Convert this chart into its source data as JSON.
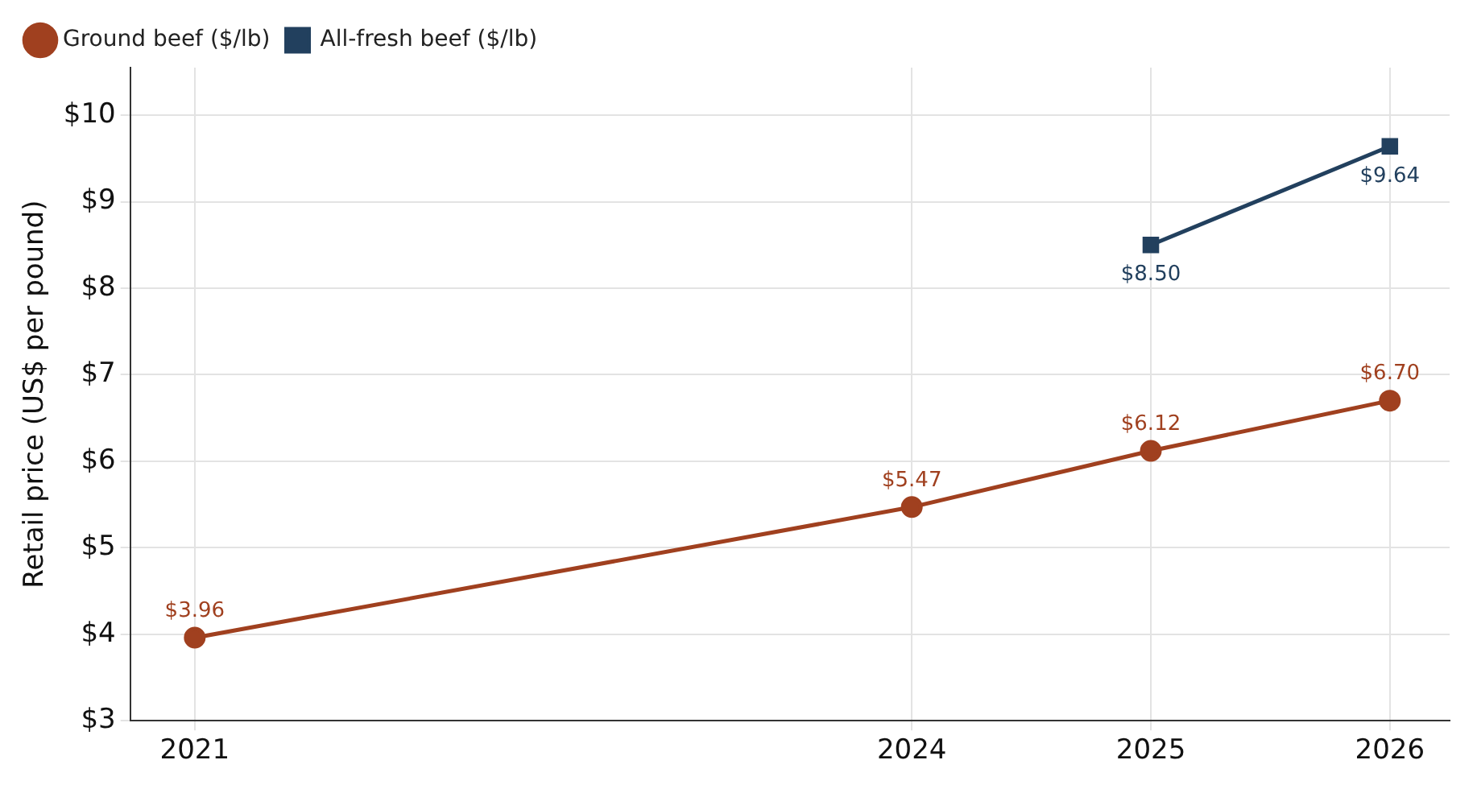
{
  "chart_data": {
    "type": "line",
    "ylabel": "Retail price (US$ per pound)",
    "x": [
      2021,
      2024,
      2025,
      2026
    ],
    "series": [
      {
        "name": "Ground beef ($/lb)",
        "color": "#a0401f",
        "marker": "circle",
        "values": [
          3.96,
          5.47,
          6.12,
          6.7
        ],
        "value_labels": [
          "$3.96",
          "$5.47",
          "$6.12",
          "$6.70"
        ]
      },
      {
        "name": "All-fresh beef ($/lb)",
        "color": "#22405e",
        "marker": "square",
        "values": [
          null,
          null,
          8.5,
          9.64
        ],
        "value_labels": [
          null,
          null,
          "$8.50",
          "$9.64"
        ]
      }
    ],
    "xlim": [
      2020.73,
      2026.25
    ],
    "xticks": [
      2021,
      2024,
      2025,
      2026
    ],
    "ylim": [
      3,
      10.55
    ],
    "yticks": [
      {
        "value": 3,
        "label": "$3"
      },
      {
        "value": 4,
        "label": "$4"
      },
      {
        "value": 5,
        "label": "$5"
      },
      {
        "value": 6,
        "label": "$6"
      },
      {
        "value": 7,
        "label": "$7"
      },
      {
        "value": 8,
        "label": "$8"
      },
      {
        "value": 9,
        "label": "$9"
      },
      {
        "value": 10,
        "label": "$10"
      }
    ],
    "grid": true,
    "legend": "top left",
    "line_style": "solid"
  }
}
